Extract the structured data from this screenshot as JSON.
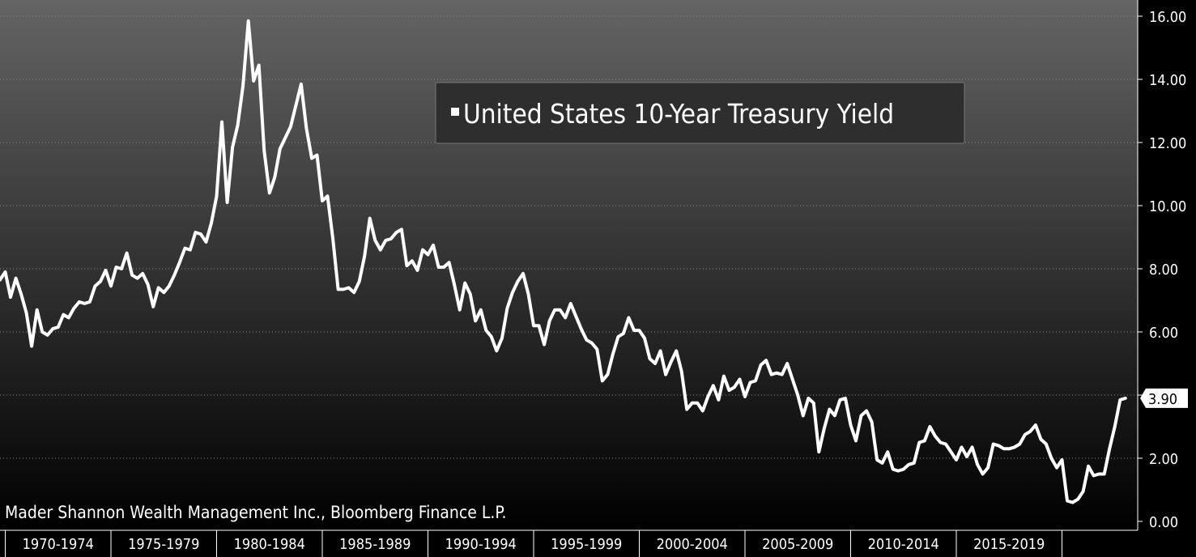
{
  "chart_data": {
    "type": "line",
    "series": [
      {
        "name": "United States 10-Year Treasury Yield",
        "color": "#ffffff",
        "x": [
          1969.75,
          1970.0,
          1970.25,
          1970.5,
          1970.75,
          1971.0,
          1971.25,
          1971.5,
          1971.75,
          1972.0,
          1972.25,
          1972.5,
          1972.75,
          1973.0,
          1973.25,
          1973.5,
          1973.75,
          1974.0,
          1974.25,
          1974.5,
          1974.75,
          1975.0,
          1975.25,
          1975.5,
          1975.75,
          1976.0,
          1976.25,
          1976.5,
          1976.75,
          1977.0,
          1977.25,
          1977.5,
          1977.75,
          1978.0,
          1978.25,
          1978.5,
          1978.75,
          1979.0,
          1979.25,
          1979.5,
          1979.75,
          1980.0,
          1980.25,
          1980.5,
          1980.75,
          1981.0,
          1981.25,
          1981.5,
          1981.75,
          1982.0,
          1982.25,
          1982.5,
          1982.75,
          1983.0,
          1983.5,
          1984.0,
          1984.25,
          1984.5,
          1984.75,
          1985.0,
          1985.25,
          1985.5,
          1985.75,
          1986.0,
          1986.25,
          1986.5,
          1986.75,
          1987.0,
          1987.25,
          1987.5,
          1987.75,
          1988.0,
          1988.25,
          1988.5,
          1988.75,
          1989.0,
          1989.25,
          1989.5,
          1989.75,
          1990.0,
          1990.25,
          1990.5,
          1990.75,
          1991.0,
          1991.25,
          1991.5,
          1991.75,
          1992.0,
          1992.25,
          1992.5,
          1992.75,
          1993.0,
          1993.25,
          1993.5,
          1993.75,
          1994.0,
          1994.25,
          1994.5,
          1994.75,
          1995.0,
          1995.25,
          1995.5,
          1995.75,
          1996.0,
          1996.25,
          1996.5,
          1996.75,
          1997.0,
          1997.25,
          1997.5,
          1997.75,
          1998.0,
          1998.25,
          1998.5,
          1998.75,
          1999.0,
          1999.25,
          1999.5,
          1999.75,
          2000.0,
          2000.25,
          2000.5,
          2000.75,
          2001.0,
          2001.25,
          2001.5,
          2001.75,
          2002.0,
          2002.25,
          2002.5,
          2002.75,
          2003.0,
          2003.25,
          2003.5,
          2003.75,
          2004.0,
          2004.25,
          2004.5,
          2004.75,
          2005.0,
          2005.25,
          2005.5,
          2005.75,
          2006.0,
          2006.25,
          2006.5,
          2006.75,
          2007.0,
          2007.25,
          2007.5,
          2007.75,
          2008.0,
          2008.25,
          2008.5,
          2008.75,
          2009.0,
          2009.25,
          2009.5,
          2009.75,
          2010.0,
          2010.25,
          2010.5,
          2010.75,
          2011.0,
          2011.25,
          2011.5,
          2011.75,
          2012.0,
          2012.25,
          2012.5,
          2012.75,
          2013.0,
          2013.25,
          2013.5,
          2013.75,
          2014.0,
          2014.25,
          2014.5,
          2014.75,
          2015.0,
          2015.25,
          2015.5,
          2015.75,
          2016.0,
          2016.25,
          2016.5,
          2016.75,
          2017.0,
          2017.25,
          2017.5,
          2017.75,
          2018.0,
          2018.25,
          2018.5,
          2018.75,
          2019.0,
          2019.25,
          2019.5,
          2019.75,
          2020.0,
          2020.25,
          2020.5,
          2020.75,
          2021.0,
          2021.25,
          2021.5,
          2021.75,
          2022.0,
          2022.25,
          2022.5,
          2022.75,
          2023.0
        ],
        "values": [
          7.65,
          7.9,
          7.1,
          7.7,
          7.2,
          6.6,
          5.55,
          6.7,
          6.0,
          5.9,
          6.1,
          6.15,
          6.55,
          6.45,
          6.75,
          6.95,
          6.9,
          6.95,
          7.45,
          7.6,
          7.95,
          7.45,
          8.05,
          8.0,
          8.5,
          7.8,
          7.7,
          7.85,
          7.5,
          6.8,
          7.4,
          7.25,
          7.45,
          7.8,
          8.2,
          8.65,
          8.6,
          9.15,
          9.1,
          8.85,
          9.45,
          10.3,
          12.65,
          10.1,
          11.85,
          12.55,
          13.8,
          15.85,
          13.95,
          14.45,
          11.75,
          10.4,
          10.9,
          11.8,
          12.5,
          13.85,
          12.45,
          11.5,
          11.6,
          10.15,
          10.3,
          8.95,
          7.35,
          7.35,
          7.4,
          7.25,
          7.6,
          8.4,
          9.6,
          8.9,
          8.6,
          8.9,
          8.95,
          9.15,
          9.25,
          8.1,
          8.25,
          7.95,
          8.6,
          8.45,
          8.75,
          8.05,
          8.05,
          8.2,
          7.5,
          6.7,
          7.55,
          7.2,
          6.35,
          6.7,
          6.05,
          5.85,
          5.4,
          5.8,
          6.75,
          7.25,
          7.6,
          7.85,
          7.2,
          6.2,
          6.2,
          5.6,
          6.35,
          6.7,
          6.7,
          6.45,
          6.9,
          6.5,
          6.1,
          5.75,
          5.65,
          5.45,
          4.45,
          4.65,
          5.3,
          5.85,
          5.95,
          6.45,
          6.05,
          6.05,
          5.8,
          5.15,
          5.0,
          5.4,
          4.65,
          5.05,
          5.4,
          4.75,
          3.55,
          3.75,
          3.75,
          3.5,
          3.95,
          4.3,
          3.85,
          4.6,
          4.15,
          4.25,
          4.5,
          3.95,
          4.4,
          4.45,
          4.95,
          5.1,
          4.65,
          4.7,
          4.65,
          5.0,
          4.5,
          4.0,
          3.35,
          3.9,
          3.75,
          2.2,
          2.95,
          3.55,
          3.35,
          3.85,
          3.9,
          3.05,
          2.55,
          3.35,
          3.5,
          3.15,
          1.95,
          1.85,
          2.2,
          1.65,
          1.6,
          1.65,
          1.8,
          1.85,
          2.5,
          2.55,
          3.0,
          2.7,
          2.5,
          2.45,
          2.2,
          1.95,
          2.35,
          2.05,
          2.35,
          1.8,
          1.5,
          1.7,
          2.45,
          2.4,
          2.3,
          2.3,
          2.35,
          2.45,
          2.75,
          2.85,
          3.05,
          2.6,
          2.45,
          2.0,
          1.7,
          1.95,
          0.65,
          0.6,
          0.7,
          0.95,
          1.75,
          1.45,
          1.5,
          1.5,
          2.3,
          3.0,
          3.85,
          3.9
        ]
      }
    ],
    "title": "",
    "xlabel": "",
    "ylabel": "",
    "xlim": [
      1969.75,
      2023.2
    ],
    "ylim": [
      0,
      16.0
    ],
    "x_categories": [
      "1970-1974",
      "1975-1979",
      "1980-1984",
      "1985-1989",
      "1990-1994",
      "1995-1999",
      "2000-2004",
      "2005-2009",
      "2010-2014",
      "2015-2019"
    ],
    "y_ticks": [
      0,
      2,
      4,
      6,
      8,
      10,
      12,
      14,
      16
    ],
    "y_tick_labels": [
      "0.00",
      "2.00",
      "",
      "6.00",
      "8.00",
      "10.00",
      "12.00",
      "14.00",
      "16.00"
    ],
    "y_axis_position": "right",
    "grid": true,
    "legend": {
      "text": "United States 10-Year Treasury Yield",
      "placement": "top-center"
    },
    "last_value_label": "3.90",
    "source_text": "Mader Shannon Wealth Management Inc., Bloomberg Finance L.P.",
    "colors": {
      "line": "#ffffff",
      "background_top": "#646464",
      "background_bottom": "#000000",
      "legend_box": "#2e2e2e"
    }
  }
}
